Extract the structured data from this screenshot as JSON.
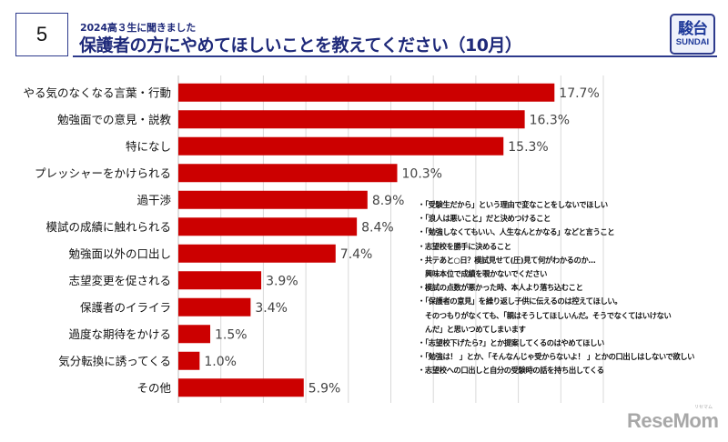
{
  "slide_number": "5",
  "header": {
    "subtitle": "2024高３生に聞きました",
    "title": "保護者の方にやめてほしいことを教えてください（10月）"
  },
  "logo": {
    "kanji": "駿台",
    "latin": "SUNDAI"
  },
  "chart_data": {
    "type": "bar",
    "orientation": "horizontal",
    "title": "保護者の方にやめてほしいことを教えてください（10月）",
    "xlabel": "",
    "ylabel": "",
    "xlim": [
      0,
      20
    ],
    "grid_step": 2,
    "grid": true,
    "unit": "%",
    "bar_color": "#cc0000",
    "categories": [
      "やる気のなくなる言葉・行動",
      "勉強面での意見・説教",
      "特になし",
      "プレッシャーをかけられる",
      "過干渉",
      "模試の成績に触れられる",
      "勉強面以外の口出し",
      "志望変更を促される",
      "保護者のイライラ",
      "過度な期待をかける",
      "気分転換に誘ってくる",
      "その他"
    ],
    "values": [
      17.7,
      16.3,
      15.3,
      10.3,
      8.9,
      8.4,
      7.4,
      3.9,
      3.4,
      1.5,
      1.0,
      5.9
    ],
    "value_labels": [
      "17.7%",
      "16.3%",
      "15.3%",
      "10.3%",
      "8.9%",
      "8.4%",
      "7.4%",
      "3.9%",
      "3.4%",
      "1.5%",
      "1.0%",
      "5.9%"
    ]
  },
  "notes": [
    {
      "text": "・「受験生だから」という理由で変なことをしないでほしい",
      "cont": false
    },
    {
      "text": "・「浪人は悪いこと」だと決めつけること",
      "cont": false
    },
    {
      "text": "・「勉強しなくてもいい、人生なんとかなる」などと言うこと",
      "cont": false
    },
    {
      "text": "・志望校を勝手に決めること",
      "cont": false
    },
    {
      "text": "・共テあと○日？模試見せて(圧)見て何がわかるのか…",
      "cont": false
    },
    {
      "text": "興味本位で成績を覗かないでください",
      "cont": true
    },
    {
      "text": "・模試の点数が悪かった時、本人より落ち込むこと",
      "cont": false
    },
    {
      "text": "・「保護者の意見」を繰り返し子供に伝えるのは控えてほしい。",
      "cont": false
    },
    {
      "text": "そのつもりがなくても、「親はそうしてほしいんだ。そうでなくてはいけない",
      "cont": true
    },
    {
      "text": "んだ」と思いつめてしまいます",
      "cont": true
    },
    {
      "text": "・「志望校下げたら?」とか提案してくるのはやめてほしい",
      "cont": false
    },
    {
      "text": "・「勉強は！ 」とか、「そんなんじゃ受からないよ！ 」とかの口出しはしないで欲しい",
      "cont": false
    },
    {
      "text": "・志望校への口出しと自分の受験時の話を持ち出してくる",
      "cont": false
    }
  ],
  "watermark": {
    "text": "ReseMom",
    "kana": "リセマム"
  }
}
